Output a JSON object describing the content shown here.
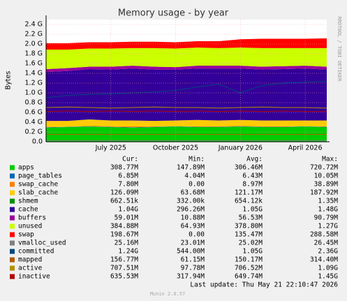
{
  "chart_data": {
    "type": "area",
    "title": "Memory usage - by year",
    "ylabel": "Bytes",
    "side_text": "RRDTOOL / TOBI OETIKER",
    "x": [
      "2025-04",
      "2025-05",
      "2025-06",
      "2025-07",
      "2025-08",
      "2025-09",
      "2025-10",
      "2025-11",
      "2025-12",
      "2026-01",
      "2026-02",
      "2026-03",
      "2026-04",
      "2026-05"
    ],
    "xlim": [
      "2025-04",
      "2026-05"
    ],
    "xticks": [
      {
        "value": "2025-07",
        "label": "July 2025"
      },
      {
        "value": "2025-10",
        "label": "October 2025"
      },
      {
        "value": "2026-01",
        "label": "January 2026"
      },
      {
        "value": "2026-04",
        "label": "April 2026"
      }
    ],
    "ylim": [
      0,
      2.5
    ],
    "yticks": [
      {
        "value": 0,
        "label": "0.0"
      },
      {
        "value": 0.2,
        "label": "0.2 G"
      },
      {
        "value": 0.4,
        "label": "0.4 G"
      },
      {
        "value": 0.6,
        "label": "0.6 G"
      },
      {
        "value": 0.8,
        "label": "0.8 G"
      },
      {
        "value": 1.0,
        "label": "1.0 G"
      },
      {
        "value": 1.2,
        "label": "1.2 G"
      },
      {
        "value": 1.4,
        "label": "1.4 G"
      },
      {
        "value": 1.6,
        "label": "1.6 G"
      },
      {
        "value": 1.8,
        "label": "1.8 G"
      },
      {
        "value": 2.0,
        "label": "2.0 G"
      },
      {
        "value": 2.2,
        "label": "2.2 G"
      },
      {
        "value": 2.4,
        "label": "2.4 G"
      }
    ],
    "grid": true,
    "stat_headers": [
      "Cur:",
      "Min:",
      "Avg:",
      "Max:"
    ],
    "series": [
      {
        "name": "apps",
        "color": "#00CC00",
        "kind": "area",
        "values": [
          0.29,
          0.3,
          0.31,
          0.3,
          0.29,
          0.3,
          0.31,
          0.3,
          0.3,
          0.31,
          0.3,
          0.3,
          0.31,
          0.3
        ],
        "stats": [
          "308.77M",
          "147.89M",
          "306.46M",
          "720.72M"
        ]
      },
      {
        "name": "page_tables",
        "color": "#0066B3",
        "kind": "area",
        "values": [
          0.006,
          0.006,
          0.006,
          0.006,
          0.006,
          0.006,
          0.006,
          0.006,
          0.006,
          0.006,
          0.006,
          0.006,
          0.006,
          0.006
        ],
        "stats": [
          "6.85M",
          "4.04M",
          "6.43M",
          "10.05M"
        ]
      },
      {
        "name": "swap_cache",
        "color": "#FF8000",
        "kind": "area",
        "values": [
          0.01,
          0,
          0.01,
          0.01,
          0.02,
          0.01,
          0,
          0.01,
          0.01,
          0.01,
          0.01,
          0.01,
          0,
          0.01
        ],
        "stats": [
          "7.80M",
          "0.00",
          "8.97M",
          "38.89M"
        ]
      },
      {
        "name": "slab_cache",
        "color": "#FFCC00",
        "kind": "area",
        "values": [
          0.12,
          0.12,
          0.13,
          0.12,
          0.12,
          0.11,
          0.12,
          0.13,
          0.12,
          0.12,
          0.12,
          0.12,
          0.12,
          0.12
        ],
        "stats": [
          "126.09M",
          "63.68M",
          "121.17M",
          "187.92M"
        ]
      },
      {
        "name": "shmem",
        "color": "#008F00",
        "kind": "area",
        "values": [
          0.0006,
          0.0006,
          0.0006,
          0.0006,
          0.0006,
          0.0006,
          0.0006,
          0.0006,
          0.0006,
          0.0006,
          0.0006,
          0.0006,
          0.0006,
          0.0006
        ],
        "stats": [
          "662.51k",
          "332.00k",
          "654.12k",
          "1.35M"
        ]
      },
      {
        "name": "cache",
        "color": "#330099",
        "kind": "area",
        "values": [
          1.0,
          1.02,
          1.03,
          1.04,
          1.06,
          1.05,
          1.04,
          1.05,
          1.06,
          1.05,
          1.04,
          1.05,
          1.06,
          1.04
        ],
        "stats": [
          "1.04G",
          "296.26M",
          "1.05G",
          "1.48G"
        ]
      },
      {
        "name": "buffers",
        "color": "#990099",
        "kind": "area",
        "values": [
          0.06,
          0.06,
          0.05,
          0.06,
          0.06,
          0.06,
          0.05,
          0.06,
          0.06,
          0.06,
          0.06,
          0.06,
          0.06,
          0.06
        ],
        "stats": [
          "59.01M",
          "10.88M",
          "56.53M",
          "90.79M"
        ]
      },
      {
        "name": "unused",
        "color": "#CCFF00",
        "kind": "area",
        "values": [
          0.4,
          0.38,
          0.37,
          0.37,
          0.36,
          0.38,
          0.38,
          0.37,
          0.36,
          0.37,
          0.38,
          0.37,
          0.36,
          0.38
        ],
        "stats": [
          "384.88M",
          "64.93M",
          "378.80M",
          "1.27G"
        ]
      },
      {
        "name": "swap",
        "color": "#FF0000",
        "kind": "area",
        "values": [
          0.13,
          0.13,
          0.13,
          0.13,
          0.13,
          0.13,
          0.13,
          0.13,
          0.14,
          0.17,
          0.19,
          0.19,
          0.19,
          0.2
        ],
        "stats": [
          "198.67M",
          "0.00",
          "135.47M",
          "288.58M"
        ]
      },
      {
        "name": "vmalloc_used",
        "color": "#808080",
        "kind": "line",
        "values": [
          0.025,
          0.025,
          0.025,
          0.025,
          0.025,
          0.025,
          0.025,
          0.025,
          0.025,
          0.025,
          0.025,
          0.025,
          0.025,
          0.025
        ],
        "stats": [
          "25.16M",
          "23.01M",
          "25.02M",
          "26.45M"
        ]
      },
      {
        "name": "committed",
        "color": "#00487D",
        "kind": "line",
        "values": [
          0.9,
          0.95,
          0.97,
          0.98,
          1.0,
          1.02,
          1.05,
          1.12,
          1.18,
          1.0,
          1.15,
          1.2,
          1.22,
          1.24
        ],
        "stats": [
          "1.24G",
          "544.00M",
          "1.05G",
          "2.36G"
        ]
      },
      {
        "name": "mapped",
        "color": "#B35A00",
        "kind": "line",
        "values": [
          0.15,
          0.15,
          0.15,
          0.15,
          0.15,
          0.15,
          0.15,
          0.15,
          0.15,
          0.15,
          0.15,
          0.15,
          0.15,
          0.15
        ],
        "stats": [
          "156.77M",
          "61.15M",
          "150.17M",
          "314.40M"
        ]
      },
      {
        "name": "active",
        "color": "#B38F00",
        "kind": "line",
        "values": [
          0.7,
          0.71,
          0.7,
          0.69,
          0.7,
          0.71,
          0.7,
          0.7,
          0.69,
          0.7,
          0.71,
          0.7,
          0.7,
          0.69
        ],
        "stats": [
          "707.51M",
          "97.78M",
          "706.52M",
          "1.09G"
        ]
      },
      {
        "name": "inactive",
        "color": "#B30000",
        "kind": "line",
        "values": [
          0.62,
          0.63,
          0.62,
          0.63,
          0.62,
          0.63,
          0.62,
          0.63,
          0.62,
          0.63,
          0.62,
          0.63,
          0.62,
          0.62
        ],
        "stats": [
          "635.53M",
          "317.94M",
          "649.74M",
          "1.45G"
        ]
      }
    ],
    "last_update": "Last update: Thu May 21 22:10:47 2026",
    "footer": "Munin 2.0.57"
  }
}
